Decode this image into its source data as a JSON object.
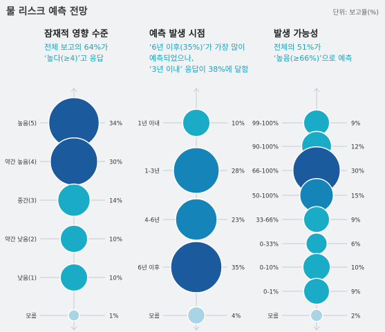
{
  "header": {
    "title": "물 리스크 예측 전망",
    "unit": "단위: 보고율(%)"
  },
  "colors": {
    "dark_blue": "#1b5a9c",
    "mid_blue": "#1584b8",
    "teal": "#1aabc6",
    "light": "#a9d4e5",
    "line": "#c6c9ce",
    "subtitle": "#1ba3be"
  },
  "panels": [
    {
      "title": "잠재적 영향 수준",
      "subtitle": [
        "전체 보고의 64%가",
        "‘높다(≥4)’고 응답"
      ]
    },
    {
      "title": "예측 발생 시점",
      "subtitle": [
        "‘6년 이후(35%)’가 가장 많이",
        "예측되었으나,",
        "‘3년 이내’ 응답이 38%에 달함"
      ]
    },
    {
      "title": "발생 가능성",
      "subtitle": [
        "전체의 51%가",
        "‘높음(≥66%)’으로 예측"
      ]
    }
  ],
  "chart_data": [
    {
      "type": "bubble",
      "title": "잠재적 영향 수준",
      "categories": [
        "높음(5)",
        "약간 높음(4)",
        "중간(3)",
        "약간 낮음(2)",
        "낮음(1)",
        "모름"
      ],
      "values": [
        34,
        30,
        14,
        10,
        10,
        1
      ],
      "colors": [
        "#1b5a9c",
        "#1b5a9c",
        "#1aabc6",
        "#1aabc6",
        "#1aabc6",
        "#a9d4e5"
      ]
    },
    {
      "type": "bubble",
      "title": "예측 발생 시점",
      "categories": [
        "1년 이내",
        "1-3년",
        "4-6년",
        "6년 이후",
        "모름"
      ],
      "values": [
        10,
        28,
        23,
        35,
        4
      ],
      "colors": [
        "#1aabc6",
        "#1584b8",
        "#1584b8",
        "#1b5a9c",
        "#a9d4e5"
      ]
    },
    {
      "type": "bubble",
      "title": "발생 가능성",
      "categories": [
        "99-100%",
        "90-100%",
        "66-100%",
        "50-100%",
        "33-66%",
        "0-33%",
        "0-10%",
        "0-1%",
        "모름"
      ],
      "values": [
        9,
        12,
        30,
        15,
        9,
        6,
        10,
        9,
        2
      ],
      "colors": [
        "#1aabc6",
        "#1aabc6",
        "#1b5a9c",
        "#1584b8",
        "#1aabc6",
        "#1aabc6",
        "#1aabc6",
        "#1aabc6",
        "#a9d4e5"
      ]
    }
  ]
}
